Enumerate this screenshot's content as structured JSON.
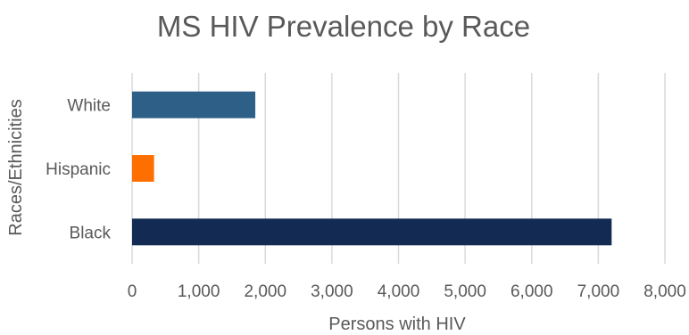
{
  "chart_data": {
    "type": "bar",
    "orientation": "horizontal",
    "title": "MS HIV Prevalence by Race",
    "xlabel": "Persons with HIV",
    "ylabel": "Races/Ethnicities",
    "categories": [
      "White",
      "Hispanic",
      "Black"
    ],
    "values": [
      1850,
      330,
      7200
    ],
    "bar_colors": [
      "#2e5f87",
      "#ff6f00",
      "#132a52"
    ],
    "xlim": [
      0,
      8000
    ],
    "x_ticks": [
      0,
      1000,
      2000,
      3000,
      4000,
      5000,
      6000,
      7000,
      8000
    ],
    "x_tick_labels": [
      "0",
      "1,000",
      "2,000",
      "3,000",
      "4,000",
      "5,000",
      "6,000",
      "7,000",
      "8,000"
    ],
    "grid": true,
    "legend": "none"
  }
}
